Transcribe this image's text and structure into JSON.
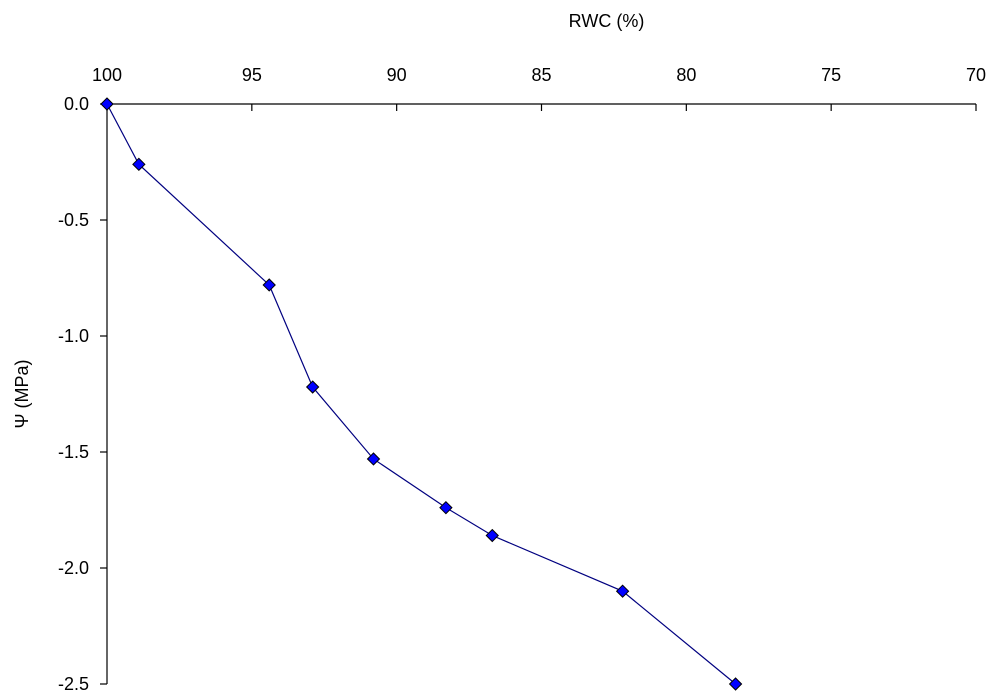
{
  "chart_data": {
    "type": "scatter",
    "title": "",
    "xlabel": "RWC (%)",
    "ylabel": "Ψ (MPa)",
    "xlim": [
      100,
      70
    ],
    "ylim": [
      -2.5,
      0.0
    ],
    "x_ticks": [
      100,
      95,
      90,
      85,
      80,
      75,
      70
    ],
    "x_tick_labels": [
      "100",
      "95",
      "90",
      "85",
      "80",
      "75",
      "70"
    ],
    "y_ticks": [
      0.0,
      -0.5,
      -1.0,
      -1.5,
      -2.0,
      -2.5
    ],
    "y_tick_labels": [
      "0.0",
      "-0.5",
      "-1.0",
      "-1.5",
      "-2.0",
      "-2.5"
    ],
    "x_axis_position": "top",
    "x_reversed": true,
    "grid": false,
    "legend": false,
    "marker": "diamond",
    "marker_color": "#0000ff",
    "line_color": "#000080",
    "series": [
      {
        "x": [
          100.0,
          98.9,
          94.4,
          92.9,
          90.8,
          88.3,
          86.7,
          82.2,
          78.3
        ],
        "y": [
          0.0,
          -0.26,
          -0.78,
          -1.22,
          -1.53,
          -1.74,
          -1.86,
          -2.1,
          -2.5
        ]
      }
    ]
  }
}
